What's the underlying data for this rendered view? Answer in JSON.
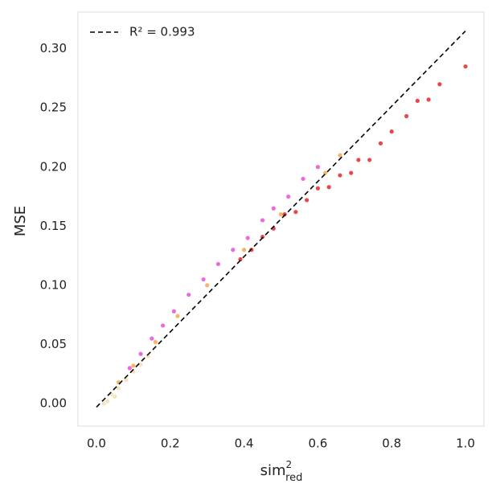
{
  "chart_data": {
    "type": "scatter",
    "x_label": {
      "base": "sim",
      "sup": "2",
      "sub": "red"
    },
    "y_label": "MSE",
    "xlim": [
      -0.05,
      1.05
    ],
    "ylim": [
      -0.019,
      0.331
    ],
    "xticks": [
      {
        "value": 0,
        "label": "0.0"
      },
      {
        "value": 0.2,
        "label": "0.2"
      },
      {
        "value": 0.4,
        "label": "0.4"
      },
      {
        "value": 0.6,
        "label": "0.6"
      },
      {
        "value": 0.8,
        "label": "0.8"
      },
      {
        "value": 1,
        "label": "1.0"
      }
    ],
    "yticks": [
      {
        "value": 0,
        "label": "0.00"
      },
      {
        "value": 0.05,
        "label": "0.05"
      },
      {
        "value": 0.1,
        "label": "0.10"
      },
      {
        "value": 0.15,
        "label": "0.15"
      },
      {
        "value": 0.2,
        "label": "0.20"
      },
      {
        "value": 0.25,
        "label": "0.25"
      },
      {
        "value": 0.3,
        "label": "0.30"
      }
    ],
    "grid": false,
    "legend": "upper left",
    "series": [
      {
        "name": "R² = 0.993",
        "color": "#000000",
        "style": "dashed",
        "x": [
          0,
          1
        ],
        "values": [
          -0.003,
          0.315
        ]
      },
      {
        "color": "#f5deb3",
        "x": [
          0.02,
          0.03,
          0.04,
          0.05,
          0.06,
          0.08,
          0.1,
          0.12,
          0.14
        ],
        "values": [
          0.0,
          0.002,
          0.008,
          0.006,
          0.013,
          0.02,
          0.027,
          0.033,
          0.04
        ]
      },
      {
        "color": "#f7a64a",
        "x": [
          0.06,
          0.1,
          0.16,
          0.22,
          0.3,
          0.4,
          0.5,
          0.62,
          0.66
        ],
        "values": [
          0.018,
          0.032,
          0.052,
          0.074,
          0.1,
          0.13,
          0.16,
          0.195,
          0.21
        ]
      },
      {
        "color": "#e84fd6",
        "x": [
          0.09,
          0.12,
          0.15,
          0.18,
          0.21,
          0.25,
          0.29,
          0.33,
          0.37,
          0.41,
          0.45,
          0.48,
          0.52,
          0.56,
          0.6
        ],
        "values": [
          0.03,
          0.042,
          0.055,
          0.066,
          0.078,
          0.092,
          0.105,
          0.118,
          0.13,
          0.14,
          0.155,
          0.165,
          0.175,
          0.19,
          0.2
        ]
      },
      {
        "color": "#e8262a",
        "x": [
          0.39,
          0.42,
          0.45,
          0.48,
          0.51,
          0.54,
          0.57,
          0.6,
          0.63,
          0.66,
          0.69,
          0.71,
          0.74,
          0.77,
          0.8,
          0.84,
          0.87,
          0.9,
          0.93,
          1
        ],
        "values": [
          0.122,
          0.13,
          0.141,
          0.148,
          0.16,
          0.162,
          0.172,
          0.182,
          0.183,
          0.193,
          0.195,
          0.206,
          0.206,
          0.22,
          0.23,
          0.243,
          0.256,
          0.257,
          0.27,
          0.285
        ]
      }
    ]
  }
}
